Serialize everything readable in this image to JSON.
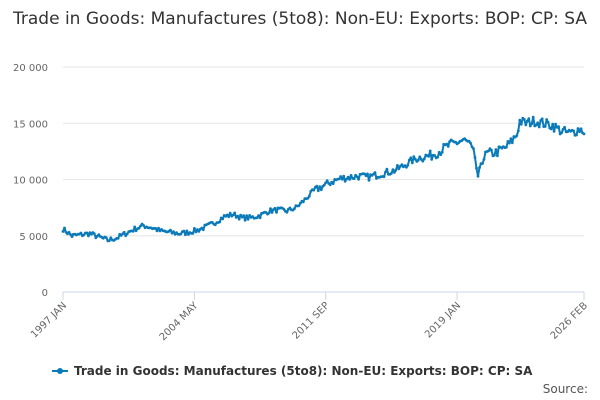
{
  "chart_data": {
    "type": "line",
    "title": "Trade in Goods: Manufactures (5to8): Non-EU: Exports: BOP: CP: SA",
    "xlabel": "",
    "ylabel": "",
    "ylim": [
      0,
      20000
    ],
    "yticks": [
      0,
      5000,
      10000,
      15000,
      20000
    ],
    "ytick_labels": [
      "0",
      "5 000",
      "10 000",
      "15 000",
      "20 000"
    ],
    "xlim_months": [
      0,
      349
    ],
    "xticks": [
      {
        "label": "1997 JAN",
        "month": 0
      },
      {
        "label": "2004 MAY",
        "month": 88
      },
      {
        "label": "2011 SEP",
        "month": 176
      },
      {
        "label": "2019 JAN",
        "month": 264
      },
      {
        "label": "2026 FEB",
        "month": 349
      }
    ],
    "grid": true,
    "legend_position": "bottom",
    "series": [
      {
        "name": "Trade in Goods: Manufactures (5to8): Non-EU: Exports: BOP: CP: SA",
        "color": "#0b7ab8",
        "anchor_points": [
          [
            0,
            5600
          ],
          [
            6,
            5000
          ],
          [
            12,
            5100
          ],
          [
            18,
            5200
          ],
          [
            24,
            4900
          ],
          [
            30,
            4600
          ],
          [
            36,
            4800
          ],
          [
            42,
            5200
          ],
          [
            48,
            5600
          ],
          [
            54,
            5900
          ],
          [
            60,
            5700
          ],
          [
            66,
            5400
          ],
          [
            72,
            5300
          ],
          [
            78,
            5200
          ],
          [
            84,
            5300
          ],
          [
            90,
            5500
          ],
          [
            96,
            5800
          ],
          [
            102,
            6200
          ],
          [
            108,
            6700
          ],
          [
            114,
            6900
          ],
          [
            120,
            6600
          ],
          [
            126,
            6600
          ],
          [
            132,
            6800
          ],
          [
            138,
            7200
          ],
          [
            144,
            7300
          ],
          [
            150,
            7200
          ],
          [
            156,
            7500
          ],
          [
            162,
            8200
          ],
          [
            168,
            9000
          ],
          [
            174,
            9400
          ],
          [
            180,
            9800
          ],
          [
            186,
            10100
          ],
          [
            192,
            10200
          ],
          [
            198,
            10300
          ],
          [
            204,
            10200
          ],
          [
            210,
            10400
          ],
          [
            216,
            10600
          ],
          [
            222,
            10800
          ],
          [
            228,
            11200
          ],
          [
            234,
            11700
          ],
          [
            240,
            12000
          ],
          [
            246,
            12100
          ],
          [
            252,
            12500
          ],
          [
            258,
            13000
          ],
          [
            264,
            13300
          ],
          [
            268,
            13500
          ],
          [
            272,
            13200
          ],
          [
            276,
            12000
          ],
          [
            278,
            10000
          ],
          [
            280,
            11500
          ],
          [
            284,
            12300
          ],
          [
            290,
            12400
          ],
          [
            296,
            12800
          ],
          [
            300,
            13300
          ],
          [
            304,
            14000
          ],
          [
            306,
            15200
          ],
          [
            310,
            15000
          ],
          [
            316,
            15200
          ],
          [
            322,
            15000
          ],
          [
            328,
            14800
          ],
          [
            334,
            14300
          ],
          [
            340,
            14100
          ],
          [
            346,
            14500
          ],
          [
            349,
            14300
          ]
        ]
      }
    ]
  },
  "legend": {
    "label": "Trade in Goods: Manufactures (5to8): Non-EU: Exports: BOP: CP: SA"
  },
  "source": "Source:"
}
